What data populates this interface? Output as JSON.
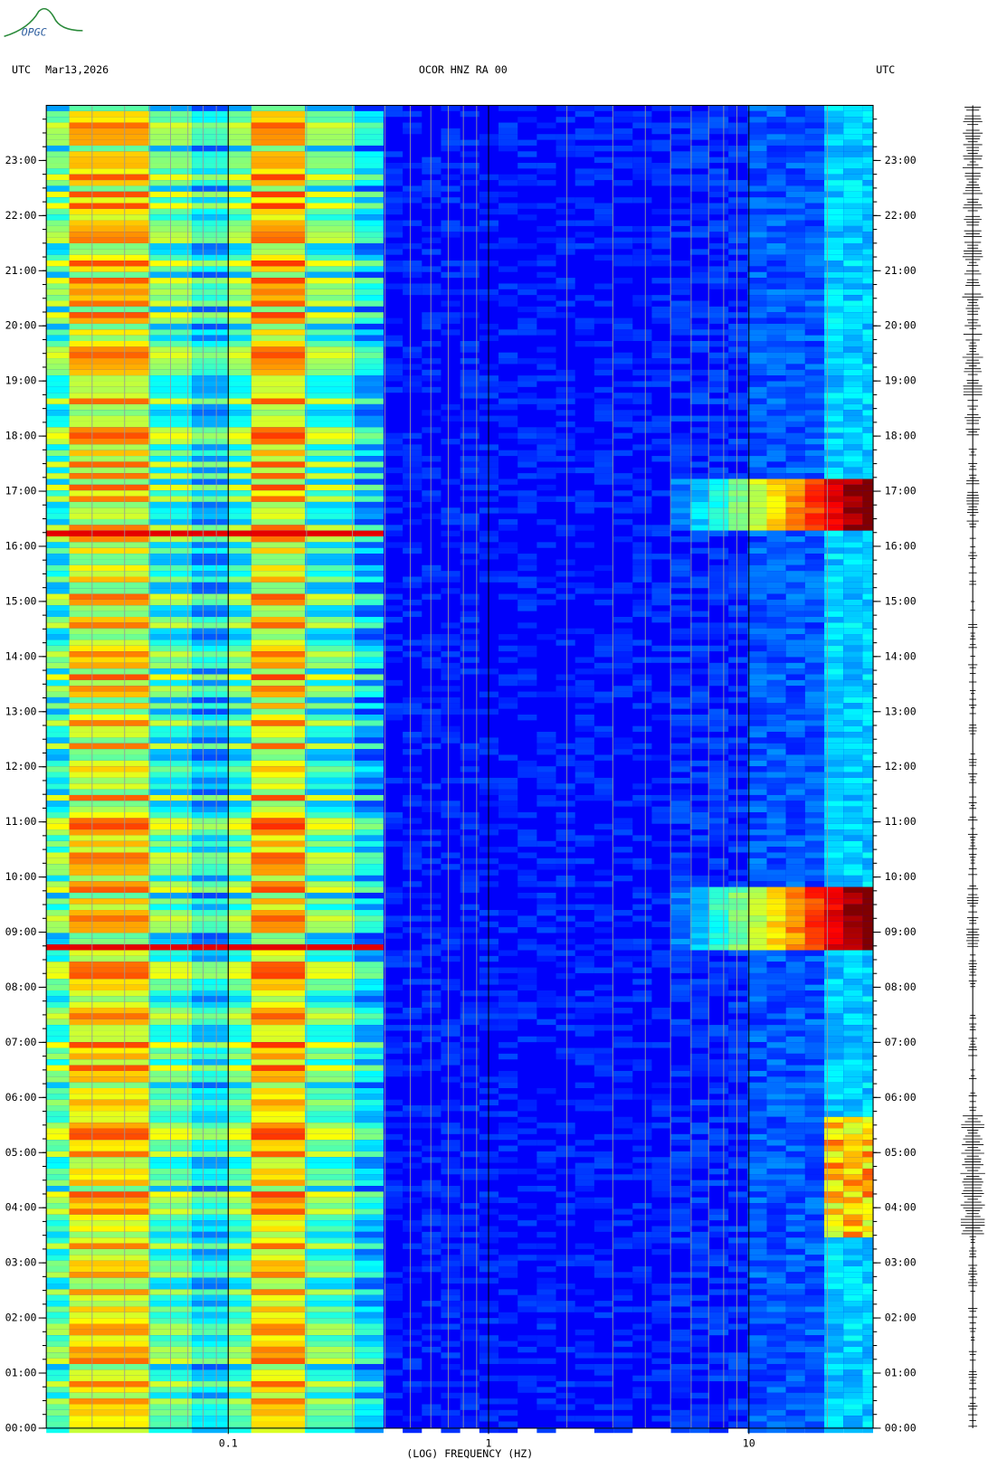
{
  "logo": "OPGC",
  "chart_data": {
    "type": "spectrogram",
    "header": {
      "left": "UTC",
      "date": "Mar13,2026",
      "title": "OCOR HNZ RA 00",
      "right": "UTC"
    },
    "xlabel": "(LOG) FREQUENCY (HZ)",
    "xscale": "log",
    "xlim": [
      0.02,
      30
    ],
    "xticks": [
      0.1,
      1,
      10
    ],
    "ylim": [
      0,
      24
    ],
    "yticks": [
      {
        "value": 0,
        "label": "00:00"
      },
      {
        "value": 1,
        "label": "01:00"
      },
      {
        "value": 2,
        "label": "02:00"
      },
      {
        "value": 3,
        "label": "03:00"
      },
      {
        "value": 4,
        "label": "04:00"
      },
      {
        "value": 5,
        "label": "05:00"
      },
      {
        "value": 6,
        "label": "06:00"
      },
      {
        "value": 7,
        "label": "07:00"
      },
      {
        "value": 8,
        "label": "08:00"
      },
      {
        "value": 9,
        "label": "09:00"
      },
      {
        "value": 10,
        "label": "10:00"
      },
      {
        "value": 11,
        "label": "11:00"
      },
      {
        "value": 12,
        "label": "12:00"
      },
      {
        "value": 13,
        "label": "13:00"
      },
      {
        "value": 14,
        "label": "14:00"
      },
      {
        "value": 15,
        "label": "15:00"
      },
      {
        "value": 16,
        "label": "16:00"
      },
      {
        "value": 17,
        "label": "17:00"
      },
      {
        "value": 18,
        "label": "18:00"
      },
      {
        "value": 19,
        "label": "19:00"
      },
      {
        "value": 20,
        "label": "20:00"
      },
      {
        "value": 21,
        "label": "21:00"
      },
      {
        "value": 22,
        "label": "22:00"
      },
      {
        "value": 23,
        "label": "23:00"
      }
    ]
  }
}
